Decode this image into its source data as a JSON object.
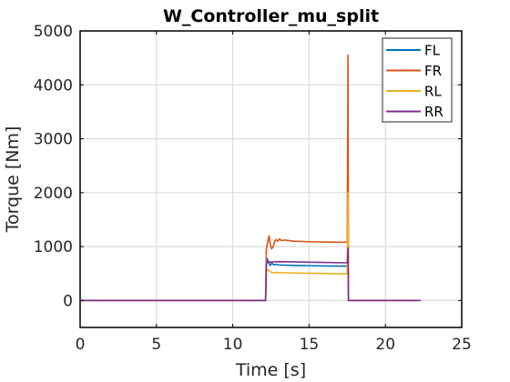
{
  "chart_data": {
    "type": "line",
    "title": "W_Controller_mu_split",
    "xlabel": "Time [s]",
    "ylabel": "Torque [Nm]",
    "xlim": [
      0,
      25
    ],
    "ylim": [
      -500,
      5000
    ],
    "xticks": [
      0,
      5,
      10,
      15,
      20,
      25
    ],
    "yticks": [
      0,
      1000,
      2000,
      3000,
      4000,
      5000
    ],
    "grid": true,
    "legend_position": "top-right",
    "series": [
      {
        "name": "FL",
        "color": "#0072BD",
        "points": [
          [
            0,
            0
          ],
          [
            12.15,
            0
          ],
          [
            12.2,
            650
          ],
          [
            12.25,
            780
          ],
          [
            12.35,
            700
          ],
          [
            12.45,
            650
          ],
          [
            12.55,
            690
          ],
          [
            12.7,
            660
          ],
          [
            12.85,
            670
          ],
          [
            13.0,
            660
          ],
          [
            13.5,
            655
          ],
          [
            14.0,
            650
          ],
          [
            15.0,
            645
          ],
          [
            16.0,
            640
          ],
          [
            17.0,
            638
          ],
          [
            17.5,
            635
          ],
          [
            17.55,
            700
          ],
          [
            17.58,
            0
          ],
          [
            22.3,
            0
          ]
        ]
      },
      {
        "name": "FR",
        "color": "#D95319",
        "points": [
          [
            0,
            0
          ],
          [
            12.15,
            0
          ],
          [
            12.2,
            950
          ],
          [
            12.3,
            1100
          ],
          [
            12.38,
            1200
          ],
          [
            12.45,
            1050
          ],
          [
            12.55,
            960
          ],
          [
            12.65,
            1000
          ],
          [
            12.75,
            1100
          ],
          [
            12.85,
            1130
          ],
          [
            12.95,
            1100
          ],
          [
            13.05,
            1140
          ],
          [
            13.2,
            1110
          ],
          [
            13.4,
            1120
          ],
          [
            13.7,
            1110
          ],
          [
            14.0,
            1100
          ],
          [
            15.0,
            1090
          ],
          [
            16.0,
            1085
          ],
          [
            17.0,
            1080
          ],
          [
            17.5,
            1080
          ],
          [
            17.55,
            4550
          ],
          [
            17.58,
            0
          ],
          [
            22.3,
            0
          ]
        ]
      },
      {
        "name": "RL",
        "color": "#EDB120",
        "points": [
          [
            0,
            0
          ],
          [
            12.15,
            0
          ],
          [
            12.2,
            520
          ],
          [
            12.3,
            570
          ],
          [
            12.45,
            540
          ],
          [
            12.6,
            510
          ],
          [
            12.8,
            520
          ],
          [
            13.0,
            515
          ],
          [
            14.0,
            510
          ],
          [
            15.0,
            505
          ],
          [
            16.0,
            500
          ],
          [
            17.0,
            495
          ],
          [
            17.5,
            495
          ],
          [
            17.55,
            2000
          ],
          [
            17.58,
            0
          ],
          [
            22.3,
            0
          ]
        ]
      },
      {
        "name": "RR",
        "color": "#7E2F8E",
        "points": [
          [
            0,
            0
          ],
          [
            12.15,
            0
          ],
          [
            12.2,
            680
          ],
          [
            12.3,
            720
          ],
          [
            12.5,
            710
          ],
          [
            12.7,
            715
          ],
          [
            13.0,
            720
          ],
          [
            14.0,
            715
          ],
          [
            15.0,
            710
          ],
          [
            16.0,
            705
          ],
          [
            17.0,
            700
          ],
          [
            17.5,
            700
          ],
          [
            17.55,
            980
          ],
          [
            17.58,
            0
          ],
          [
            22.3,
            0
          ]
        ]
      }
    ]
  }
}
